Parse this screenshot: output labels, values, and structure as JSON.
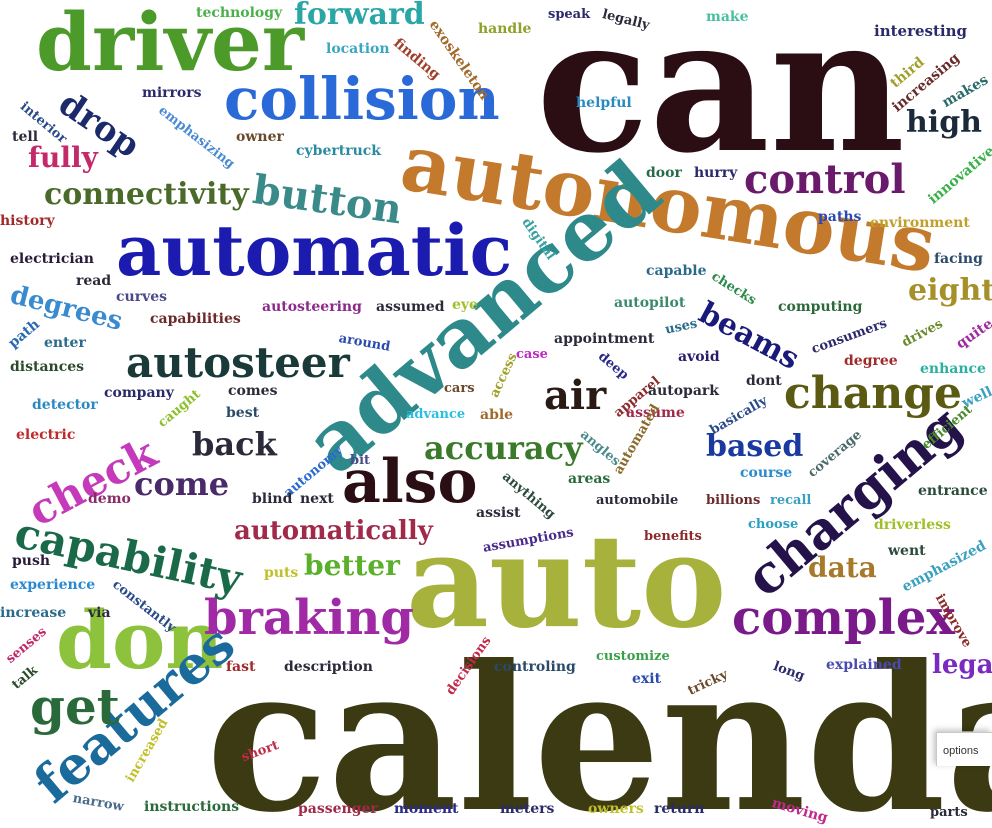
{
  "widget": {
    "label": "options"
  },
  "words": [
    {
      "t": "can",
      "c": "#2b0e14"
    },
    {
      "t": "calendar",
      "c": "#3b3a12"
    },
    {
      "t": "auto",
      "c": "#a6b23c"
    },
    {
      "t": "driver",
      "c": "#4c9a2a"
    },
    {
      "t": "autonomous",
      "c": "#c47a2c"
    },
    {
      "t": "advanced",
      "c": "#2e8a8a"
    },
    {
      "t": "automatic",
      "c": "#1b1bb0"
    },
    {
      "t": "collision",
      "c": "#2a6ad8"
    },
    {
      "t": "also",
      "c": "#2a0e14"
    },
    {
      "t": "charging",
      "c": "#24124a"
    },
    {
      "t": "don",
      "c": "#8cc23c"
    },
    {
      "t": "features",
      "c": "#1a6a9c"
    },
    {
      "t": "complex",
      "c": "#7a1a8a"
    },
    {
      "t": "braking",
      "c": "#a02aa6"
    },
    {
      "t": "capability",
      "c": "#1a6a4a"
    },
    {
      "t": "check",
      "c": "#c43aba"
    },
    {
      "t": "change",
      "c": "#5a5a12"
    },
    {
      "t": "control",
      "c": "#6a1a6a"
    },
    {
      "t": "button",
      "c": "#3a8a8a"
    },
    {
      "t": "autosteer",
      "c": "#1a3a3a"
    },
    {
      "t": "get",
      "c": "#2a6a3a"
    },
    {
      "t": "forward",
      "c": "#2aa6a6"
    },
    {
      "t": "drop",
      "c": "#1a2a6a"
    },
    {
      "t": "connectivity",
      "c": "#4a6a2a"
    },
    {
      "t": "fully",
      "c": "#c42a6a"
    },
    {
      "t": "high",
      "c": "#1a2a3a"
    },
    {
      "t": "air",
      "c": "#2a1a14"
    },
    {
      "t": "eight",
      "c": "#a6902a"
    },
    {
      "t": "legal",
      "c": "#7a2ac0"
    },
    {
      "t": "beams",
      "c": "#1a1a7a"
    },
    {
      "t": "accuracy",
      "c": "#3a7a2a"
    },
    {
      "t": "back",
      "c": "#2a2a3a"
    },
    {
      "t": "based",
      "c": "#1a3aa0"
    },
    {
      "t": "come",
      "c": "#4a2a6a"
    },
    {
      "t": "automatically",
      "c": "#a02a4a"
    },
    {
      "t": "better",
      "c": "#5ab02a"
    },
    {
      "t": "data",
      "c": "#a67a2a"
    },
    {
      "t": "degrees",
      "c": "#3a8ad0"
    },
    {
      "t": "technology",
      "c": "#4ab04a"
    },
    {
      "t": "location",
      "c": "#3aa6c0"
    },
    {
      "t": "finding",
      "c": "#a0402a"
    },
    {
      "t": "exoskeleton",
      "c": "#a06a2a"
    },
    {
      "t": "handle",
      "c": "#90a02a"
    },
    {
      "t": "speak",
      "c": "#2a2a6a"
    },
    {
      "t": "legally",
      "c": "#2a2a3a"
    },
    {
      "t": "make",
      "c": "#4ac0a0"
    },
    {
      "t": "interesting",
      "c": "#2a2a6a"
    },
    {
      "t": "third",
      "c": "#a0a02a"
    },
    {
      "t": "increasing",
      "c": "#6a2a2a"
    },
    {
      "t": "makes",
      "c": "#2a6a6a"
    },
    {
      "t": "innovative",
      "c": "#3ab04a"
    },
    {
      "t": "interior",
      "c": "#2a4a8a"
    },
    {
      "t": "mirrors",
      "c": "#2a2a6a"
    },
    {
      "t": "emphasizing",
      "c": "#4a8ad0"
    },
    {
      "t": "helpful",
      "c": "#2a8ac0"
    },
    {
      "t": "tell",
      "c": "#2a2a3a"
    },
    {
      "t": "owner",
      "c": "#6a4a2a"
    },
    {
      "t": "cybertruck",
      "c": "#2a8aa0"
    },
    {
      "t": "door",
      "c": "#2a6a4a"
    },
    {
      "t": "hurry",
      "c": "#2a2a6a"
    },
    {
      "t": "history",
      "c": "#a02a2a"
    },
    {
      "t": "digital",
      "c": "#3aa0a0"
    },
    {
      "t": "paths",
      "c": "#2a4ab0"
    },
    {
      "t": "environment",
      "c": "#c0a02a"
    },
    {
      "t": "electrician",
      "c": "#2a1a3a"
    },
    {
      "t": "facing",
      "c": "#2a4a6a"
    },
    {
      "t": "capable",
      "c": "#2a6a8a"
    },
    {
      "t": "checks",
      "c": "#2a8a4a"
    },
    {
      "t": "read",
      "c": "#2a2a3a"
    },
    {
      "t": "curves",
      "c": "#4a4a8a"
    },
    {
      "t": "path",
      "c": "#2a6ab0"
    },
    {
      "t": "capabilities",
      "c": "#6a2a2a"
    },
    {
      "t": "autosteering",
      "c": "#8a2a8a"
    },
    {
      "t": "assumed",
      "c": "#2a2a3a"
    },
    {
      "t": "eye",
      "c": "#a0c02a"
    },
    {
      "t": "autopilot",
      "c": "#3a8a6a"
    },
    {
      "t": "computing",
      "c": "#2a6a3a"
    },
    {
      "t": "enter",
      "c": "#2a6a8a"
    },
    {
      "t": "around",
      "c": "#2a4ab0"
    },
    {
      "t": "appointment",
      "c": "#2a2a3a"
    },
    {
      "t": "uses",
      "c": "#2a6a8a"
    },
    {
      "t": "consumers",
      "c": "#2a2a6a"
    },
    {
      "t": "drives",
      "c": "#6a8a2a"
    },
    {
      "t": "quite",
      "c": "#a02aa0"
    },
    {
      "t": "distances",
      "c": "#2a4a2a"
    },
    {
      "t": "case",
      "c": "#c02ac0"
    },
    {
      "t": "deep",
      "c": "#2a2a8a"
    },
    {
      "t": "avoid",
      "c": "#2a1a6a"
    },
    {
      "t": "degree",
      "c": "#a02a2a"
    },
    {
      "t": "enhance",
      "c": "#2ab0a0"
    },
    {
      "t": "company",
      "c": "#2a2a6a"
    },
    {
      "t": "comes",
      "c": "#2a2a3a"
    },
    {
      "t": "cars",
      "c": "#6a4a2a"
    },
    {
      "t": "access",
      "c": "#a0a02a"
    },
    {
      "t": "apparel",
      "c": "#8a2a2a"
    },
    {
      "t": "autopark",
      "c": "#2a2a3a"
    },
    {
      "t": "dont",
      "c": "#2a2a3a"
    },
    {
      "t": "well",
      "c": "#3aa0c0"
    },
    {
      "t": "detector",
      "c": "#2a8ac0"
    },
    {
      "t": "caught",
      "c": "#8ac02a"
    },
    {
      "t": "best",
      "c": "#2a4a6a"
    },
    {
      "t": "advance",
      "c": "#2ac0e0"
    },
    {
      "t": "able",
      "c": "#a06a2a"
    },
    {
      "t": "assume",
      "c": "#a02a4a"
    },
    {
      "t": "basically",
      "c": "#2a4a8a"
    },
    {
      "t": "efficient",
      "c": "#4a8a2a"
    },
    {
      "t": "electric",
      "c": "#c02a2a"
    },
    {
      "t": "angles",
      "c": "#4a8a8a"
    },
    {
      "t": "automated",
      "c": "#8a6a2a"
    },
    {
      "t": "course",
      "c": "#2a8ad0"
    },
    {
      "t": "coverage",
      "c": "#4a6a6a"
    },
    {
      "t": "bit",
      "c": "#4a4a8a"
    },
    {
      "t": "autonomy",
      "c": "#2a6ad0"
    },
    {
      "t": "anything",
      "c": "#2a4a3a"
    },
    {
      "t": "areas",
      "c": "#2a6a3a"
    },
    {
      "t": "demo",
      "c": "#8a2a6a"
    },
    {
      "t": "blind",
      "c": "#2a2a3a"
    },
    {
      "t": "next",
      "c": "#2a2a3a"
    },
    {
      "t": "assist",
      "c": "#2a2a3a"
    },
    {
      "t": "automobile",
      "c": "#2a2a3a"
    },
    {
      "t": "billions",
      "c": "#6a2a2a"
    },
    {
      "t": "recall",
      "c": "#3aa0c0"
    },
    {
      "t": "entrance",
      "c": "#2a4a3a"
    },
    {
      "t": "assumptions",
      "c": "#4a2a8a"
    },
    {
      "t": "benefits",
      "c": "#8a2a2a"
    },
    {
      "t": "choose",
      "c": "#2aa0c0"
    },
    {
      "t": "driverless",
      "c": "#a0c02a"
    },
    {
      "t": "went",
      "c": "#2a4a3a"
    },
    {
      "t": "push",
      "c": "#2a1a3a"
    },
    {
      "t": "puts",
      "c": "#c0c02a"
    },
    {
      "t": "emphasized",
      "c": "#3aa0c0"
    },
    {
      "t": "improve",
      "c": "#8a2a2a"
    },
    {
      "t": "experience",
      "c": "#2a8ad0"
    },
    {
      "t": "constantly",
      "c": "#2a4a8a"
    },
    {
      "t": "increase",
      "c": "#2a6a8a"
    },
    {
      "t": "via",
      "c": "#2a2a3a"
    },
    {
      "t": "senses",
      "c": "#c02a6a"
    },
    {
      "t": "customize",
      "c": "#3aa04a"
    },
    {
      "t": "explained",
      "c": "#4a4ab0"
    },
    {
      "t": "talk",
      "c": "#2a4a2a"
    },
    {
      "t": "fast",
      "c": "#a02a2a"
    },
    {
      "t": "description",
      "c": "#2a2a3a"
    },
    {
      "t": "decisions",
      "c": "#c02a4a"
    },
    {
      "t": "controling",
      "c": "#2a4a6a"
    },
    {
      "t": "exit",
      "c": "#2a4ab0"
    },
    {
      "t": "tricky",
      "c": "#6a4a2a"
    },
    {
      "t": "long",
      "c": "#2a2a6a"
    },
    {
      "t": "short",
      "c": "#c02a4a"
    },
    {
      "t": "increased",
      "c": "#c0c02a"
    },
    {
      "t": "narrow",
      "c": "#4a6a8a"
    },
    {
      "t": "instructions",
      "c": "#2a6a3a"
    },
    {
      "t": "passenger",
      "c": "#a02a4a"
    },
    {
      "t": "moment",
      "c": "#2a2a8a"
    },
    {
      "t": "meters",
      "c": "#2a2a6a"
    },
    {
      "t": "owners",
      "c": "#c0c02a"
    },
    {
      "t": "return",
      "c": "#2a2a6a"
    },
    {
      "t": "moving",
      "c": "#c02a8a"
    },
    {
      "t": "parts",
      "c": "#2a2a3a"
    }
  ]
}
